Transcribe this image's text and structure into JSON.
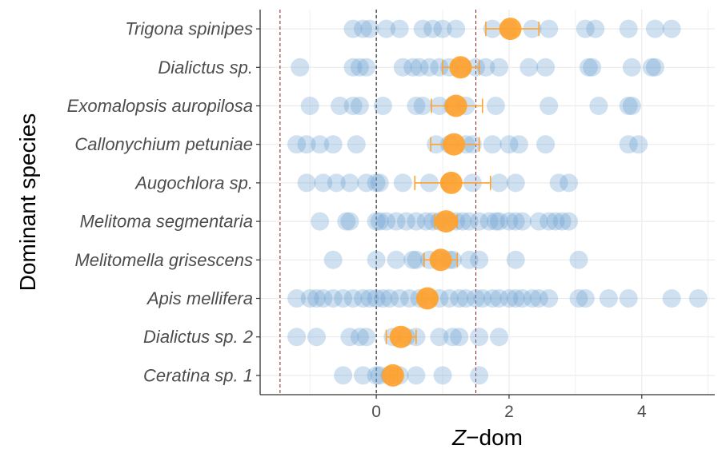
{
  "chart_data": {
    "type": "scatter",
    "xlabel_italic": "Z",
    "xlabel_rest": "−dom",
    "ylabel": "Dominant species",
    "xlim": [
      -1.75,
      5.1
    ],
    "x_ticks": [
      0,
      2,
      4
    ],
    "x_tick_labels": [
      "0",
      "2",
      "4"
    ],
    "categories": [
      "Trigona spinipes",
      "Dialictus sp.",
      "Exomalopsis auropilosa",
      "Callonychium petuniae",
      "Augochlora sp.",
      "Melitoma segmentaria",
      "Melitomella grisescens",
      "Apis mellifera",
      "Dialictus sp. 2",
      "Ceratina sp. 1"
    ],
    "reference_lines": [
      {
        "x": -1.45,
        "color": "#8b1a1a",
        "style": "dashed"
      },
      {
        "x": 0,
        "color": "#000000",
        "style": "dashed"
      },
      {
        "x": 1.5,
        "color": "#8b1a1a",
        "style": "dashed"
      }
    ],
    "colors": {
      "points": "#6a9fcf",
      "mean": "#ffa22e",
      "grid": "#ebebeb"
    },
    "series": [
      {
        "type": "observations",
        "points": [
          [
            -0.35,
            -0.2,
            -0.1,
            0.15,
            0.35,
            0.7,
            0.85,
            1.0,
            1.2,
            1.75,
            2.0,
            2.35,
            2.6,
            3.15,
            3.3,
            3.8,
            4.2,
            4.45
          ],
          [
            -1.15,
            -0.35,
            -0.25,
            -0.15,
            0.4,
            0.55,
            0.65,
            0.8,
            0.95,
            1.1,
            1.3,
            1.5,
            1.65,
            1.85,
            2.3,
            2.55,
            3.2,
            3.25,
            3.85,
            4.15,
            4.2
          ],
          [
            -1.0,
            -0.55,
            -0.35,
            -0.25,
            0.1,
            0.6,
            0.7,
            0.95,
            1.15,
            1.35,
            1.8,
            2.6,
            3.35,
            3.8,
            3.85
          ],
          [
            -1.2,
            -1.05,
            -0.85,
            -0.65,
            -0.3,
            0.9,
            1.1,
            1.35,
            1.45,
            1.75,
            2.0,
            2.15,
            2.55,
            3.8,
            3.95
          ],
          [
            -1.05,
            -0.8,
            -0.6,
            -0.4,
            -0.15,
            0.0,
            0.05,
            0.4,
            0.8,
            1.1,
            1.45,
            1.85,
            2.1,
            2.75,
            2.9
          ],
          [
            -0.85,
            -0.45,
            -0.4,
            0.0,
            0.05,
            0.15,
            0.3,
            0.45,
            0.6,
            0.75,
            0.85,
            0.95,
            1.1,
            1.2,
            1.3,
            1.4,
            1.55,
            1.7,
            1.8,
            1.85,
            2.0,
            2.1,
            2.2,
            2.45,
            2.6,
            2.7,
            2.8,
            2.9
          ],
          [
            -0.65,
            0.0,
            0.3,
            0.55,
            0.6,
            0.8,
            0.95,
            1.1,
            1.15,
            1.4,
            1.55,
            2.1,
            3.05
          ],
          [
            -1.2,
            -1.0,
            -0.9,
            -0.8,
            -0.65,
            -0.5,
            -0.35,
            -0.2,
            -0.1,
            0.0,
            0.1,
            0.2,
            0.35,
            0.5,
            0.65,
            0.8,
            0.95,
            1.1,
            1.25,
            1.35,
            1.5,
            1.6,
            1.75,
            1.85,
            2.0,
            2.1,
            2.2,
            2.35,
            2.45,
            2.6,
            3.05,
            3.15,
            3.5,
            3.8,
            4.45,
            4.85
          ],
          [
            -1.2,
            -0.9,
            -0.4,
            -0.25,
            -0.15,
            0.25,
            0.45,
            0.6,
            0.95,
            1.15,
            1.25,
            1.55,
            1.85
          ],
          [
            -0.5,
            -0.2,
            0.0,
            0.05,
            0.2,
            0.35,
            0.6,
            1.0,
            1.55
          ]
        ]
      },
      {
        "type": "mean_with_error",
        "means": [
          2.02,
          1.27,
          1.2,
          1.17,
          1.13,
          1.05,
          0.97,
          0.77,
          0.37,
          0.25
        ],
        "lower": [
          1.65,
          1.0,
          0.83,
          0.82,
          0.58,
          0.88,
          0.72,
          0.68,
          0.15,
          0.2
        ],
        "upper": [
          2.45,
          1.55,
          1.6,
          1.55,
          1.72,
          1.22,
          1.22,
          0.88,
          0.6,
          0.32
        ]
      }
    ]
  }
}
